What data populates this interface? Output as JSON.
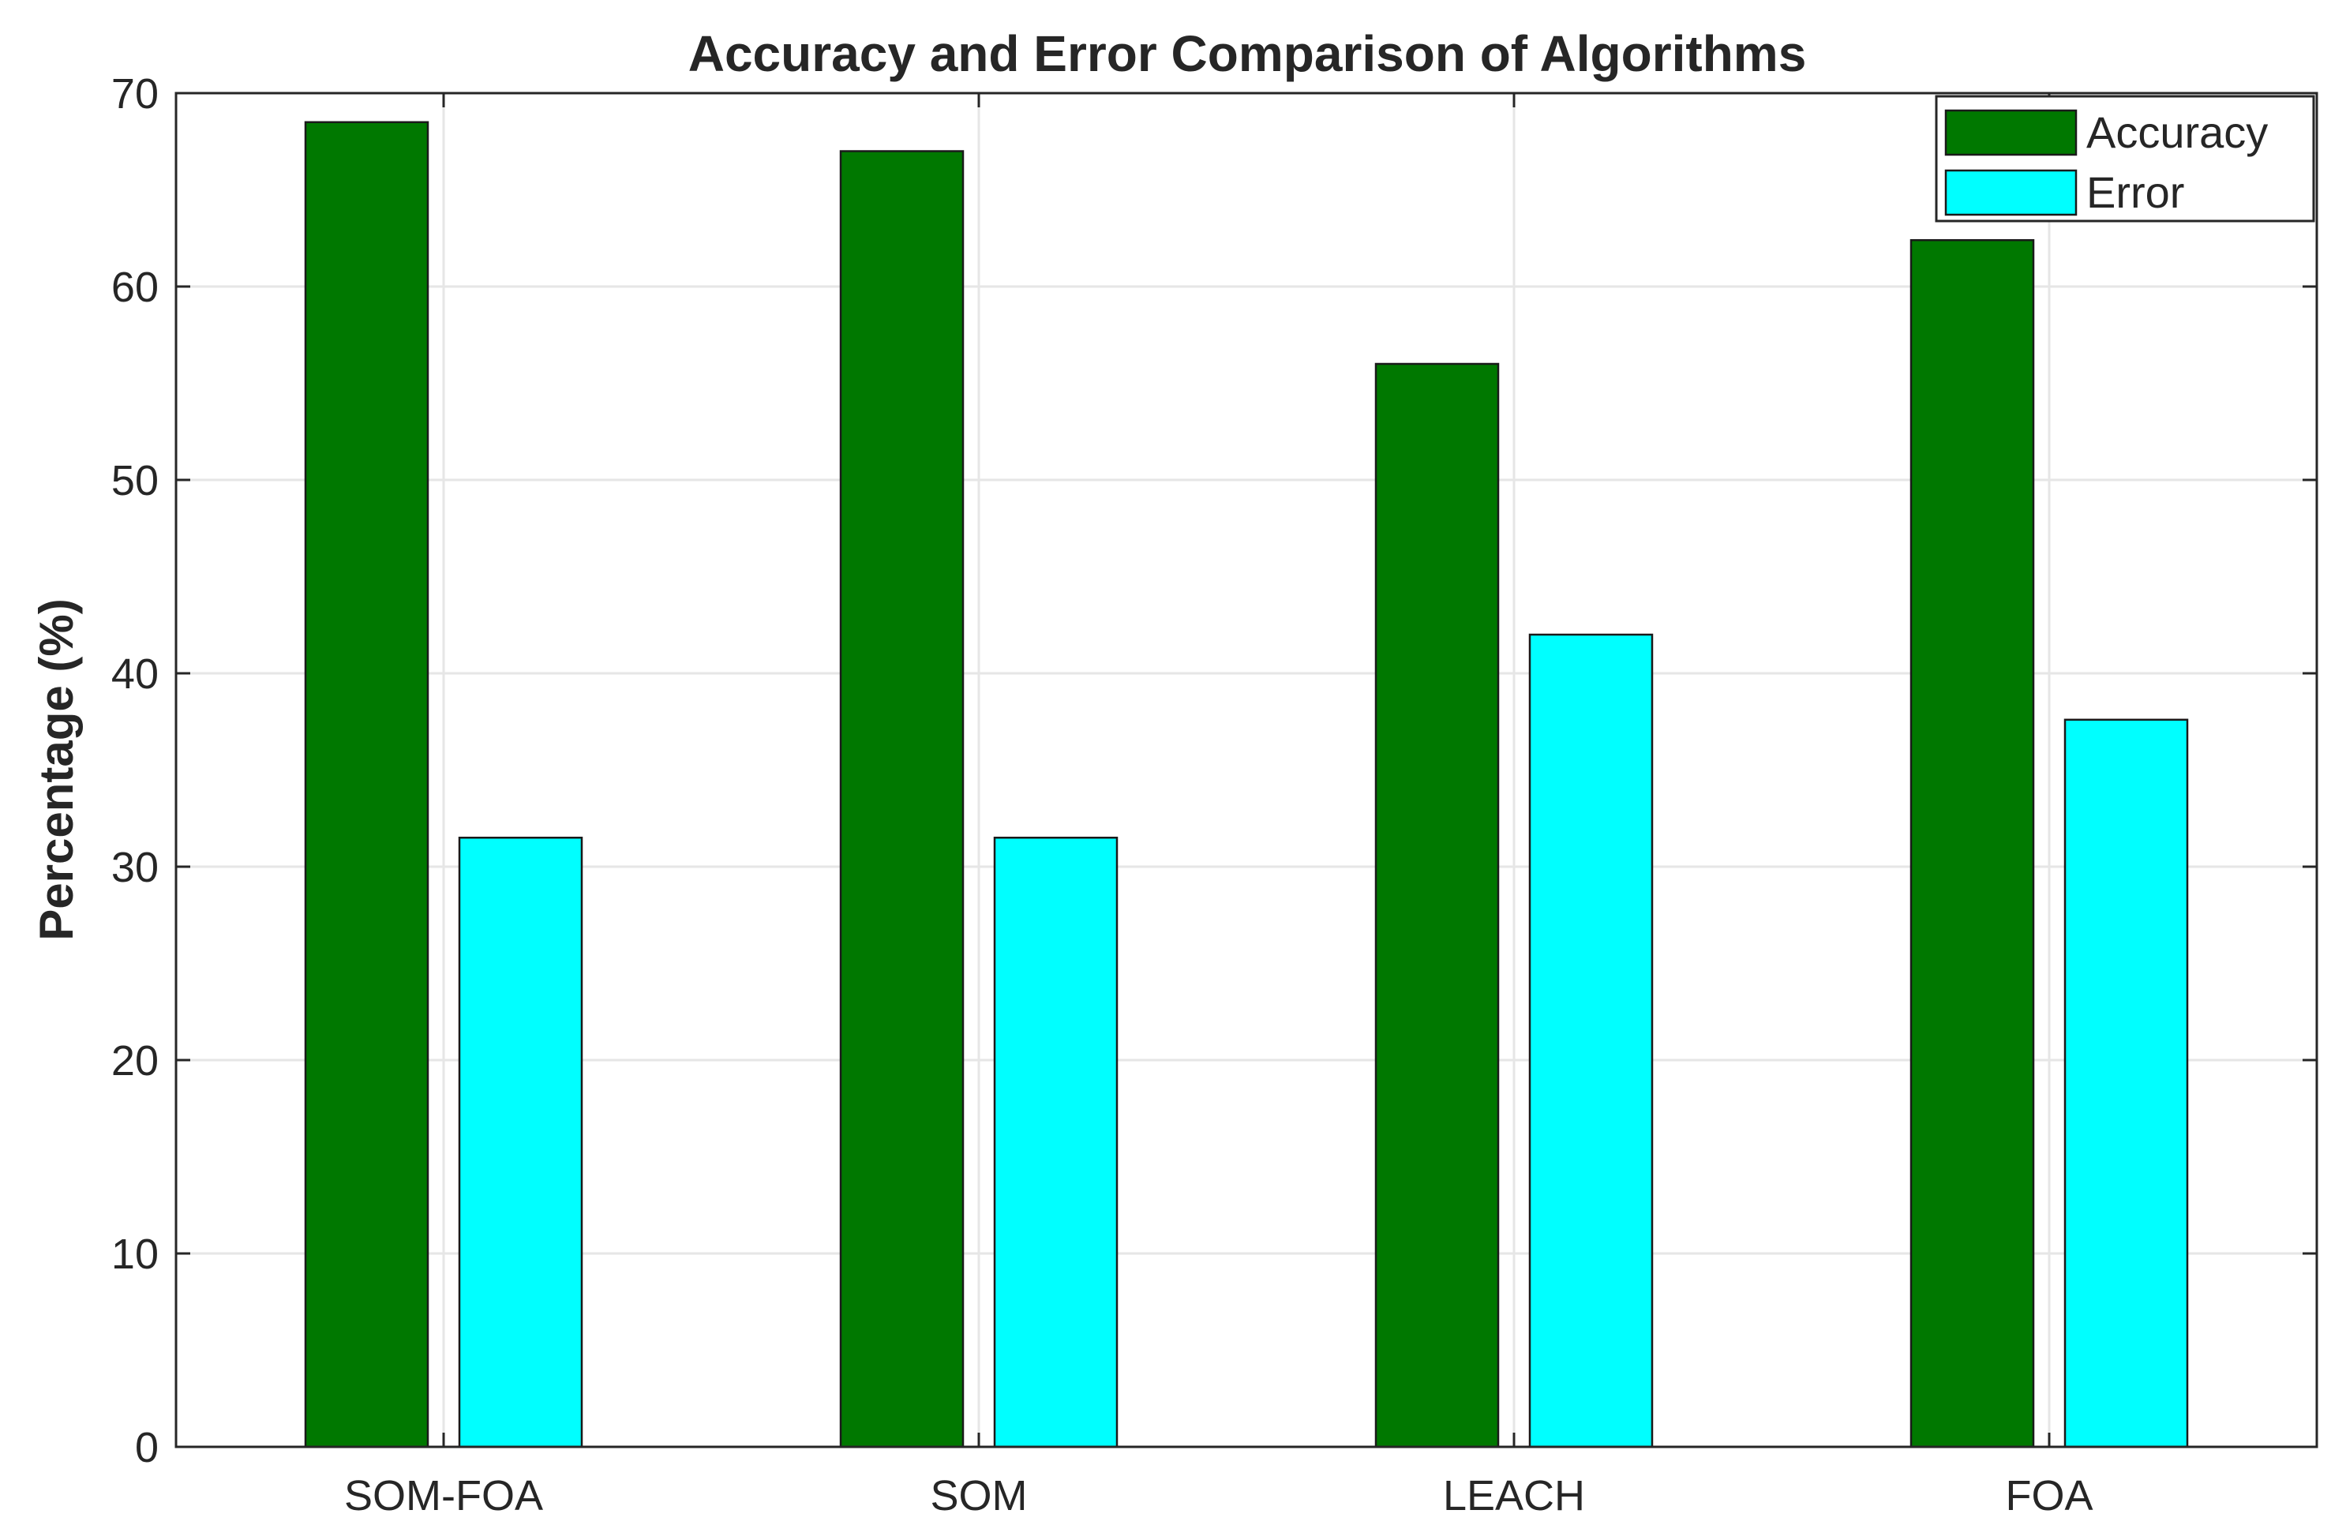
{
  "chart_data": {
    "type": "bar",
    "title": "Accuracy and Error Comparison of Algorithms",
    "xlabel": "",
    "ylabel": "Percentage (%)",
    "categories": [
      "SOM-FOA",
      "SOM",
      "LEACH",
      "FOA"
    ],
    "series": [
      {
        "name": "Accuracy",
        "values": [
          68.5,
          67.0,
          56.0,
          62.4
        ],
        "color": "#007800"
      },
      {
        "name": "Error",
        "values": [
          31.5,
          31.5,
          42.0,
          37.6
        ],
        "color": "#00ffff"
      }
    ],
    "ylim": [
      0,
      70
    ],
    "yticks": [
      0,
      10,
      20,
      30,
      40,
      50,
      60,
      70
    ],
    "grid": true,
    "legend_position": "top-right"
  }
}
